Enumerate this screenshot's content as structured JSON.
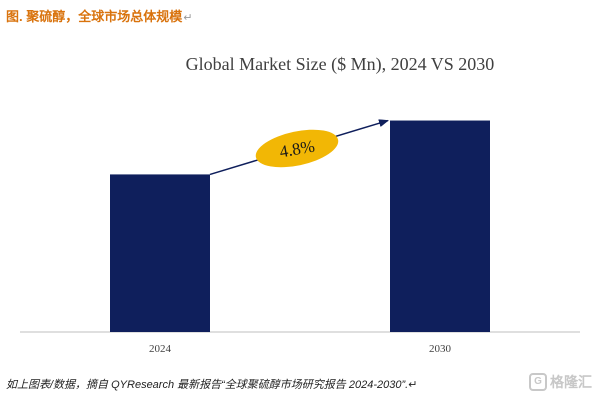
{
  "header": {
    "caption": "图. 聚硫醇，全球市场总体规模",
    "para_mark": "↵"
  },
  "chart_data": {
    "type": "bar",
    "title": "Global Market Size ($ Mn), 2024 VS 2030",
    "categories": [
      "2024",
      "2030"
    ],
    "values": [
      155,
      208
    ],
    "ylim": [
      0,
      240
    ],
    "grid": false,
    "annotation": {
      "text": "4.8%",
      "color": "#f2b705"
    },
    "bar_color": "#0f1f5c",
    "axis_color": "#bfbfbf"
  },
  "footer": {
    "source": "如上图表/数据，摘自 QYResearch 最新报告“全球聚硫醇市场研究报告 2024-2030”.↵",
    "watermark_text": "格隆汇",
    "watermark_icon": "G"
  }
}
